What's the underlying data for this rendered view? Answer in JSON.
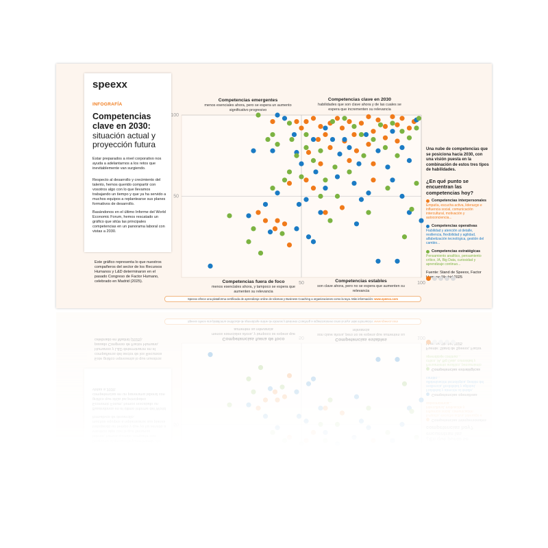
{
  "header": {
    "logo": "speexx",
    "eyebrow": "INFOGRAFÍA",
    "title_bold": "Competencias clave en 2030:",
    "title_light": "situación actual y proyección futura",
    "paragraphs": [
      "Estar preparados a nivel corporativo nos ayuda a adelantarnos a los retos que inevitablemente van surgiendo.",
      "Respecto al desarrollo y crecimiento del talento, hemos querido compartir con vosotros algo con lo que llevamos trabajando un tiempo y que ya ha servido a muchos equipos a replantearse sus planes formativos de desarrollo.",
      "Basándonos en el último Informe del World Economic Forum, hemos rescatado un gráfico que sitúa las principales competencias en un panorama laboral con vistas a 2030."
    ],
    "note": "Este gráfico representa lo que nuestros compañeros del sector de los Recursos Humanos y L&D determinaron en el pasado Congreso de Factor Humano, celebrado en Madrid (2025)."
  },
  "chart_data": {
    "type": "scatter",
    "quadrants": [
      {
        "title": "Competencias emergentes",
        "subtitle": "menos esenciales ahora, pero se espera un aumento significativo progresivo"
      },
      {
        "title": "Competencias clave en 2030",
        "subtitle": "habilidades que son clave ahora y de las cuales se espera que incrementen su relevancia"
      },
      {
        "title": "Competencias fuera de foco",
        "subtitle": "menos esenciales ahora, y tampoco se espera que aumenten su relevancia"
      },
      {
        "title": "Competencias estables",
        "subtitle": "son clave ahora, pero no se espera que aumenten su relevancia"
      }
    ],
    "xlim": [
      0,
      100
    ],
    "ylim": [
      0,
      100
    ],
    "xticks": [
      50,
      100
    ],
    "yticks": [
      50,
      100
    ],
    "grid": true,
    "series": [
      {
        "name": "Competencias interpersonales",
        "color": "#f07a1a",
        "x": [
          38,
          48,
          50,
          52,
          55,
          58,
          60,
          62,
          65,
          67,
          70,
          72,
          75,
          78,
          80,
          82,
          85,
          88,
          90,
          92,
          57,
          62,
          68,
          73,
          78,
          85,
          90,
          95,
          70,
          80,
          58,
          52,
          55,
          45,
          40,
          43,
          35,
          39,
          32,
          45,
          60,
          67,
          80,
          97,
          53
        ],
        "values": [
          96,
          96,
          92,
          96,
          98,
          93,
          88,
          95,
          98,
          92,
          96,
          88,
          95,
          99,
          90,
          97,
          93,
          99,
          94,
          98,
          85,
          80,
          84,
          78,
          82,
          86,
          84,
          92,
          72,
          70,
          70,
          60,
          55,
          58,
          35,
          33,
          35,
          30,
          40,
          20,
          40,
          43,
          60,
          96,
          77
        ]
      },
      {
        "name": "Competencias operativas",
        "color": "#1b7bc4",
        "x": [
          12,
          40,
          43,
          47,
          55,
          60,
          63,
          66,
          70,
          74,
          77,
          82,
          86,
          88,
          92,
          95,
          98,
          65,
          72,
          78,
          60,
          56,
          50,
          48,
          38,
          30,
          35,
          40,
          49,
          52,
          58,
          53,
          55,
          48,
          37,
          28,
          73,
          75,
          88,
          92,
          95,
          100,
          90,
          82,
          68
        ],
        "values": [
          7,
          100,
          98,
          88,
          85,
          92,
          85,
          76,
          80,
          70,
          88,
          78,
          68,
          90,
          80,
          72,
          97,
          62,
          58,
          52,
          55,
          65,
          70,
          77,
          78,
          78,
          45,
          52,
          45,
          48,
          40,
          25,
          22,
          30,
          28,
          38,
          33,
          48,
          60,
          50,
          40,
          35,
          10,
          10,
          85
        ]
      },
      {
        "name": "Competencias estratégicas",
        "color": "#7cb342",
        "x": [
          32,
          36,
          38,
          40,
          46,
          48,
          52,
          58,
          63,
          68,
          72,
          75,
          83,
          85,
          88,
          92,
          95,
          98,
          99,
          80,
          76,
          70,
          64,
          55,
          45,
          43,
          38,
          50,
          60,
          65,
          58,
          30,
          28,
          20,
          33,
          42,
          62,
          78,
          93,
          96,
          98,
          90,
          86,
          52,
          45
        ],
        "values": [
          100,
          85,
          88,
          82,
          85,
          75,
          80,
          78,
          96,
          98,
          93,
          88,
          94,
          80,
          95,
          90,
          86,
          92,
          98,
          85,
          75,
          65,
          68,
          72,
          65,
          60,
          55,
          62,
          60,
          50,
          50,
          30,
          22,
          38,
          15,
          27,
          35,
          40,
          25,
          42,
          58,
          75,
          55,
          88,
          95
        ]
      }
    ]
  },
  "legend": {
    "intro": "Una nube de competencias que se posiciona hacia 2030, con una visión puesta en la combinación de estos tres tipos de habilidades.",
    "question": "¿En qué punto se encuentran las competencias hoy?",
    "descriptions": [
      "Empatía, escucha activa, liderazgo e influencia social, comunicación intercultural, motivación y autoconciencia...",
      "Fiabilidad y atención al detalle, resiliencia, flexibilidad y agilidad, alfabetización tecnológica, gestión del cambio...",
      "Pensamiento analítico, pensamiento crítico, IA, Big Data, curiosidad y aprendizaje continuo..."
    ],
    "source": "Fuente: Stand de Speexx, Factor Humano Madrid 2025"
  },
  "footer": {
    "text": "Speexx ofrece una plataforma certificada de aprendizaje online de Idiomas y Business Coaching a organizaciones como la tuya. Más información:",
    "link": "www.speexx.com"
  }
}
